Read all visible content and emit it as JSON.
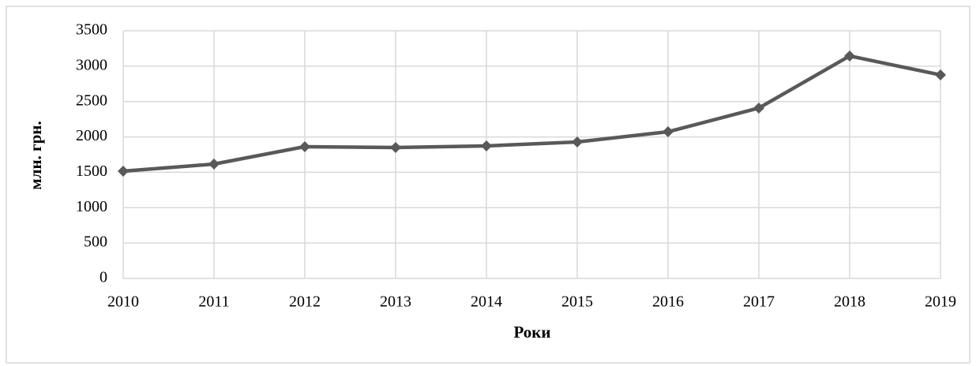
{
  "chart_data": {
    "type": "line",
    "x": [
      2010,
      2011,
      2012,
      2013,
      2014,
      2015,
      2016,
      2017,
      2018,
      2019
    ],
    "series": [
      {
        "color": "#595959",
        "values": [
          1516,
          1616,
          1862,
          1850,
          1873,
          1928,
          2073,
          2408,
          3144,
          2876
        ]
      }
    ],
    "xlim": [
      2010,
      2019
    ],
    "xticks": [
      2010,
      2011,
      2012,
      2013,
      2014,
      2015,
      2016,
      2017,
      2018,
      2019
    ],
    "ylim": [
      0,
      3500
    ],
    "yticks": [
      0,
      500,
      1000,
      1500,
      2000,
      2500,
      3000,
      3500
    ],
    "xlabel": "Роки",
    "ylabel": "млн. грн.",
    "grid": true
  }
}
